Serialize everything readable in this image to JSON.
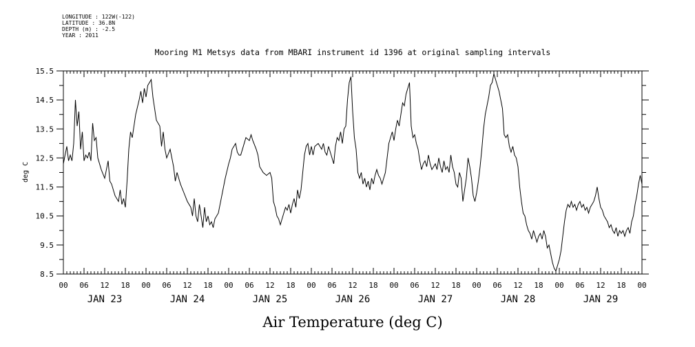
{
  "metadata": {
    "longitude": "LONGITUDE : 122W(-122)",
    "latitude": "LATITUDE : 36.8N",
    "depth": "DEPTH (m) : -2.5",
    "year": "YEAR : 2011"
  },
  "chart_data": {
    "type": "line",
    "title": "Mooring M1 Metsys data from MBARI instrument id 1396 at original sampling intervals",
    "xlabel": "Air Temperature (deg C)",
    "ylabel": "deg C",
    "ylim": [
      8.5,
      15.5
    ],
    "xlim_hours": [
      0,
      168
    ],
    "yticks": [
      "15.5",
      "14.5",
      "13.5",
      "12.5",
      "11.5",
      "10.5",
      "9.5",
      "8.5"
    ],
    "hour_tick_labels": [
      "00",
      "06",
      "12",
      "18",
      "00",
      "06",
      "12",
      "18",
      "00",
      "06",
      "12",
      "18",
      "00",
      "06",
      "12",
      "18",
      "00",
      "06",
      "12",
      "18",
      "00",
      "06",
      "12",
      "18",
      "00",
      "06",
      "12",
      "18",
      "00"
    ],
    "day_labels": [
      "JAN 23",
      "JAN 24",
      "JAN 25",
      "JAN 26",
      "JAN 27",
      "JAN 28",
      "JAN 29"
    ],
    "grid": false,
    "series": [
      {
        "values": [
          [
            0,
            12.3
          ],
          [
            0.5,
            12.6
          ],
          [
            1,
            12.9
          ],
          [
            1.5,
            12.4
          ],
          [
            2,
            12.6
          ],
          [
            2.5,
            12.4
          ],
          [
            3,
            13.0
          ],
          [
            3.5,
            14.5
          ],
          [
            4,
            13.6
          ],
          [
            4.5,
            14.1
          ],
          [
            5,
            12.8
          ],
          [
            5.5,
            13.4
          ],
          [
            6,
            12.4
          ],
          [
            6.5,
            12.6
          ],
          [
            7,
            12.5
          ],
          [
            7.5,
            12.7
          ],
          [
            8,
            12.4
          ],
          [
            8.5,
            13.7
          ],
          [
            9,
            13.1
          ],
          [
            9.5,
            13.2
          ],
          [
            10,
            12.5
          ],
          [
            11,
            12.1
          ],
          [
            12,
            11.8
          ],
          [
            13,
            12.4
          ],
          [
            13.5,
            11.7
          ],
          [
            14,
            11.6
          ],
          [
            15,
            11.2
          ],
          [
            16,
            11.0
          ],
          [
            16.5,
            11.4
          ],
          [
            17,
            10.9
          ],
          [
            17.5,
            11.1
          ],
          [
            18,
            10.8
          ],
          [
            18.5,
            11.7
          ],
          [
            19,
            12.8
          ],
          [
            19.5,
            13.4
          ],
          [
            20,
            13.2
          ],
          [
            21,
            14.0
          ],
          [
            22,
            14.5
          ],
          [
            22.5,
            14.8
          ],
          [
            23,
            14.4
          ],
          [
            23.5,
            14.9
          ],
          [
            24,
            14.6
          ],
          [
            24.5,
            15.0
          ],
          [
            25,
            15.1
          ],
          [
            25.5,
            15.2
          ],
          [
            26,
            14.6
          ],
          [
            27,
            13.8
          ],
          [
            28,
            13.6
          ],
          [
            28.5,
            12.9
          ],
          [
            29,
            13.4
          ],
          [
            29.5,
            12.8
          ],
          [
            30,
            12.5
          ],
          [
            31,
            12.8
          ],
          [
            32,
            12.2
          ],
          [
            32.5,
            11.7
          ],
          [
            33,
            12.0
          ],
          [
            34,
            11.6
          ],
          [
            35,
            11.3
          ],
          [
            36,
            11.0
          ],
          [
            37,
            10.8
          ],
          [
            37.5,
            10.5
          ],
          [
            38,
            11.1
          ],
          [
            38.5,
            10.5
          ],
          [
            39,
            10.3
          ],
          [
            39.5,
            10.9
          ],
          [
            40,
            10.5
          ],
          [
            40.5,
            10.1
          ],
          [
            41,
            10.8
          ],
          [
            41.5,
            10.3
          ],
          [
            42,
            10.5
          ],
          [
            42.5,
            10.2
          ],
          [
            43,
            10.3
          ],
          [
            43.5,
            10.1
          ],
          [
            44,
            10.4
          ],
          [
            45,
            10.6
          ],
          [
            46,
            11.2
          ],
          [
            47,
            11.8
          ],
          [
            48,
            12.3
          ],
          [
            48.5,
            12.5
          ],
          [
            49,
            12.8
          ],
          [
            49.5,
            12.9
          ],
          [
            50,
            13.0
          ],
          [
            50.5,
            12.7
          ],
          [
            51,
            12.6
          ],
          [
            51.5,
            12.6
          ],
          [
            52,
            12.8
          ],
          [
            53,
            13.2
          ],
          [
            54,
            13.1
          ],
          [
            54.5,
            13.3
          ],
          [
            55,
            13.1
          ],
          [
            56,
            12.8
          ],
          [
            56.5,
            12.6
          ],
          [
            57,
            12.2
          ],
          [
            57.5,
            12.1
          ],
          [
            58,
            12.0
          ],
          [
            59,
            11.9
          ],
          [
            60,
            12.0
          ],
          [
            60.5,
            11.8
          ],
          [
            61,
            11.0
          ],
          [
            61.5,
            10.8
          ],
          [
            62,
            10.5
          ],
          [
            62.5,
            10.4
          ],
          [
            63,
            10.2
          ],
          [
            63.5,
            10.4
          ],
          [
            64,
            10.6
          ],
          [
            64.5,
            10.8
          ],
          [
            65,
            10.7
          ],
          [
            65.5,
            10.9
          ],
          [
            66,
            10.6
          ],
          [
            66.5,
            10.9
          ],
          [
            67,
            11.1
          ],
          [
            67.5,
            10.8
          ],
          [
            68,
            11.4
          ],
          [
            68.5,
            11.1
          ],
          [
            69,
            11.4
          ],
          [
            69.5,
            12.0
          ],
          [
            70,
            12.6
          ],
          [
            70.5,
            12.9
          ],
          [
            71,
            13.0
          ],
          [
            71.5,
            12.6
          ],
          [
            72,
            12.9
          ],
          [
            72.5,
            12.6
          ],
          [
            73,
            12.9
          ],
          [
            74,
            13.0
          ],
          [
            75,
            12.8
          ],
          [
            75.5,
            13.0
          ],
          [
            76,
            12.7
          ],
          [
            76.5,
            12.6
          ],
          [
            77,
            12.9
          ],
          [
            77.5,
            12.7
          ],
          [
            78,
            12.5
          ],
          [
            78.5,
            12.3
          ],
          [
            79,
            12.9
          ],
          [
            79.5,
            13.2
          ],
          [
            80,
            13.1
          ],
          [
            80.5,
            13.4
          ],
          [
            81,
            13.0
          ],
          [
            81.5,
            13.5
          ],
          [
            82,
            13.6
          ],
          [
            82.5,
            14.5
          ],
          [
            83,
            15.1
          ],
          [
            83.5,
            15.3
          ],
          [
            84,
            14.1
          ],
          [
            84.5,
            13.2
          ],
          [
            85,
            12.8
          ],
          [
            85.5,
            12.0
          ],
          [
            86,
            11.8
          ],
          [
            86.5,
            12.0
          ],
          [
            87,
            11.6
          ],
          [
            87.5,
            11.8
          ],
          [
            88,
            11.5
          ],
          [
            88.5,
            11.7
          ],
          [
            89,
            11.4
          ],
          [
            89.5,
            11.8
          ],
          [
            90,
            11.6
          ],
          [
            90.5,
            11.9
          ],
          [
            91,
            12.1
          ],
          [
            91.5,
            11.9
          ],
          [
            92,
            11.8
          ],
          [
            92.5,
            11.6
          ],
          [
            93,
            11.8
          ],
          [
            93.5,
            12.0
          ],
          [
            94,
            12.5
          ],
          [
            94.5,
            13.0
          ],
          [
            95,
            13.2
          ],
          [
            95.5,
            13.4
          ],
          [
            96,
            13.1
          ],
          [
            96.5,
            13.5
          ],
          [
            97,
            13.8
          ],
          [
            97.5,
            13.6
          ],
          [
            98,
            14.0
          ],
          [
            98.5,
            14.4
          ],
          [
            99,
            14.3
          ],
          [
            99.5,
            14.7
          ],
          [
            100,
            14.9
          ],
          [
            100.5,
            15.1
          ],
          [
            101,
            13.6
          ],
          [
            101.5,
            13.2
          ],
          [
            102,
            13.3
          ],
          [
            102.5,
            13.0
          ],
          [
            103,
            12.8
          ],
          [
            103.5,
            12.4
          ],
          [
            104,
            12.1
          ],
          [
            104.5,
            12.3
          ],
          [
            105,
            12.4
          ],
          [
            105.5,
            12.2
          ],
          [
            106,
            12.6
          ],
          [
            106.5,
            12.3
          ],
          [
            107,
            12.1
          ],
          [
            107.5,
            12.2
          ],
          [
            108,
            12.3
          ],
          [
            108.5,
            12.1
          ],
          [
            109,
            12.5
          ],
          [
            109.5,
            12.2
          ],
          [
            110,
            12.0
          ],
          [
            110.5,
            12.4
          ],
          [
            111,
            12.1
          ],
          [
            111.5,
            12.2
          ],
          [
            112,
            12.0
          ],
          [
            112.5,
            12.6
          ],
          [
            113,
            12.2
          ],
          [
            113.5,
            12.0
          ],
          [
            114,
            11.6
          ],
          [
            114.5,
            11.5
          ],
          [
            115,
            12.0
          ],
          [
            115.5,
            11.8
          ],
          [
            116,
            11.0
          ],
          [
            116.5,
            11.4
          ],
          [
            117,
            11.8
          ],
          [
            117.5,
            12.5
          ],
          [
            118,
            12.2
          ],
          [
            118.5,
            11.8
          ],
          [
            119,
            11.2
          ],
          [
            119.5,
            11.0
          ],
          [
            120,
            11.3
          ],
          [
            120.5,
            11.7
          ],
          [
            121,
            12.2
          ],
          [
            121.5,
            12.8
          ],
          [
            122,
            13.5
          ],
          [
            122.5,
            14.0
          ],
          [
            123,
            14.3
          ],
          [
            123.5,
            14.6
          ],
          [
            124,
            15.0
          ],
          [
            124.5,
            15.1
          ],
          [
            125,
            15.4
          ],
          [
            125.5,
            15.2
          ],
          [
            126,
            15.0
          ],
          [
            126.5,
            14.8
          ],
          [
            127,
            14.5
          ],
          [
            127.5,
            14.2
          ],
          [
            128,
            13.3
          ],
          [
            128.5,
            13.2
          ],
          [
            129,
            13.3
          ],
          [
            129.5,
            12.9
          ],
          [
            130,
            12.7
          ],
          [
            130.5,
            12.9
          ],
          [
            131,
            12.6
          ],
          [
            131.5,
            12.5
          ],
          [
            132,
            12.2
          ],
          [
            132.5,
            11.5
          ],
          [
            133,
            11.0
          ],
          [
            133.5,
            10.6
          ],
          [
            134,
            10.5
          ],
          [
            134.5,
            10.2
          ],
          [
            135,
            10.0
          ],
          [
            135.5,
            9.9
          ],
          [
            136,
            9.7
          ],
          [
            136.5,
            10.0
          ],
          [
            137,
            9.8
          ],
          [
            137.5,
            9.6
          ],
          [
            138,
            9.8
          ],
          [
            138.5,
            9.9
          ],
          [
            139,
            9.7
          ],
          [
            139.5,
            10.0
          ],
          [
            140,
            9.8
          ],
          [
            140.5,
            9.4
          ],
          [
            141,
            9.5
          ],
          [
            141.5,
            9.2
          ],
          [
            142,
            8.9
          ],
          [
            142.5,
            8.7
          ],
          [
            143,
            8.6
          ],
          [
            143.5,
            8.8
          ],
          [
            144,
            9.0
          ],
          [
            144.5,
            9.3
          ],
          [
            145,
            9.8
          ],
          [
            145.5,
            10.3
          ],
          [
            146,
            10.7
          ],
          [
            146.5,
            10.9
          ],
          [
            147,
            10.8
          ],
          [
            147.5,
            11.0
          ],
          [
            148,
            10.8
          ],
          [
            148.5,
            10.9
          ],
          [
            149,
            10.7
          ],
          [
            149.5,
            10.9
          ],
          [
            150,
            11.0
          ],
          [
            150.5,
            10.8
          ],
          [
            151,
            10.9
          ],
          [
            151.5,
            10.7
          ],
          [
            152,
            10.8
          ],
          [
            152.5,
            10.6
          ],
          [
            153,
            10.8
          ],
          [
            153.5,
            10.9
          ],
          [
            154,
            11.0
          ],
          [
            154.5,
            11.2
          ],
          [
            155,
            11.5
          ],
          [
            155.5,
            11.1
          ],
          [
            156,
            10.8
          ],
          [
            156.5,
            10.7
          ],
          [
            157,
            10.5
          ],
          [
            157.5,
            10.4
          ],
          [
            158,
            10.3
          ],
          [
            158.5,
            10.1
          ],
          [
            159,
            10.2
          ],
          [
            159.5,
            10.0
          ],
          [
            160,
            9.9
          ],
          [
            160.5,
            10.1
          ],
          [
            161,
            9.8
          ],
          [
            161.5,
            10.0
          ],
          [
            162,
            9.9
          ],
          [
            162.5,
            10.0
          ],
          [
            163,
            9.8
          ],
          [
            163.5,
            10.0
          ],
          [
            164,
            10.1
          ],
          [
            164.5,
            9.9
          ],
          [
            165,
            10.3
          ],
          [
            165.5,
            10.5
          ],
          [
            166,
            10.9
          ],
          [
            166.5,
            11.2
          ],
          [
            167,
            11.6
          ],
          [
            167.5,
            11.9
          ],
          [
            168,
            11.6
          ]
        ]
      }
    ]
  }
}
